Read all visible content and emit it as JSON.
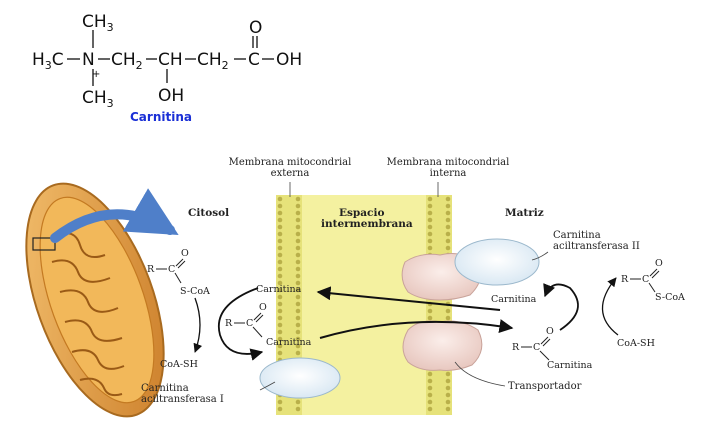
{
  "structure": {
    "top_methyl": "CH",
    "top_methyl_sub": "3",
    "left_methyl": "H",
    "left_methyl_sub": "3",
    "left_methyl_c": "C",
    "nitrogen": "N",
    "charge": "+",
    "ch2_a": "CH",
    "ch2_a_sub": "2",
    "ch": "CH",
    "ch2_b": "CH",
    "ch2_b_sub": "2",
    "carboxyl_c": "C",
    "oh_end": "OH",
    "carbonyl_o": "O",
    "bottom_methyl": "CH",
    "bottom_methyl_sub": "3",
    "hydroxyl": "OH",
    "name": "Carnitina"
  },
  "labels": {
    "outer_membrane": [
      "Membrana mitocondrial",
      "externa"
    ],
    "inner_membrane": [
      "Membrana mitocondrial",
      "interna"
    ],
    "cytosol": "Citosol",
    "intermembrane_space": [
      "Espacio",
      "intermembrana"
    ],
    "matrix": "Matriz",
    "cat2": [
      "Carnitina",
      "aciltransferasa II"
    ],
    "cat1": [
      "Carnitina",
      "aciltransferasa I"
    ],
    "transporter": "Transportador"
  },
  "chem_left": {
    "acyl_r": "R",
    "acyl_c": "C",
    "acyl_o": "O",
    "acyl_scoa": "S-CoA",
    "coa_sh": "CoA-SH",
    "carnitina_top": "Carnitina",
    "acylcarn_r": "R",
    "acylcarn_c": "C",
    "acylcarn_o": "O",
    "carnitina_bottom": "Carnitina"
  },
  "chem_right": {
    "carnitina_top": "Carnitina",
    "acyl_r": "R",
    "acyl_c": "C",
    "acyl_o": "O",
    "acyl_scoa": "S-CoA",
    "coa_sh": "CoA-SH",
    "acylcarn_r": "R",
    "acylcarn_c": "C",
    "acylcarn_o": "O",
    "carnitina_bottom": "Carnitina"
  },
  "colors": {
    "name_blue": "#1a2fd6",
    "membrane_yellow": "#e6e27a",
    "intermembrane_fill": "#f4f1a0",
    "arrow_blue": "#4f7fc9",
    "mito_orange": "#e8a33a"
  }
}
